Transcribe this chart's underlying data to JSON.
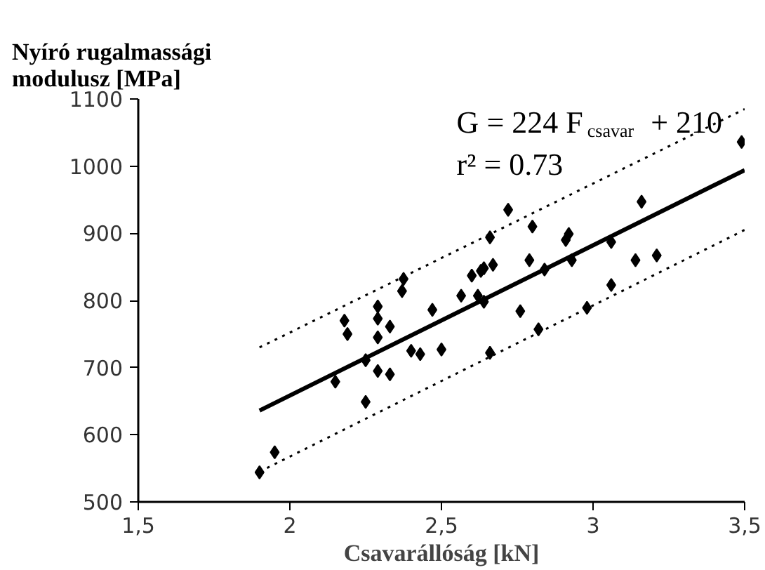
{
  "chart_data": {
    "type": "scatter",
    "ylabel": "Nyíró rugalmassági\nmodulusz [MPa]",
    "xlabel": "Csavarállóság [kN]",
    "xlim": [
      1.5,
      3.5
    ],
    "xticks": [
      {
        "value": 1.5,
        "label": "1,5"
      },
      2,
      {
        "value": 2.5,
        "label": "2,5"
      },
      3,
      {
        "value": 3.5,
        "label": "3,5"
      }
    ],
    "ylim": [
      500,
      1100
    ],
    "yticks": [
      500,
      600,
      700,
      800,
      900,
      1000,
      1100
    ],
    "grid": false,
    "marker": "diamond",
    "annotations": [
      "G = 224 F$_{csavar}$ + 210",
      "r² = 0.73"
    ],
    "series": [
      {
        "color": "#000000",
        "x": [
          1.9,
          1.95,
          2.15,
          2.25,
          2.18,
          2.19,
          2.29,
          2.29,
          2.29,
          2.33,
          2.25,
          2.29,
          2.33,
          2.375,
          2.37,
          2.4,
          2.43,
          2.47,
          2.5,
          2.6,
          2.63,
          2.565,
          2.62,
          2.64,
          2.66,
          2.66,
          2.72,
          2.8,
          2.64,
          2.67,
          2.79,
          2.84,
          2.76,
          2.82,
          2.92,
          2.91,
          2.93,
          2.98,
          3.06,
          3.06,
          3.14,
          3.21,
          3.16,
          3.49
        ],
        "values": [
          544,
          574,
          679,
          649,
          770,
          750,
          791,
          773,
          745,
          761,
          711,
          695,
          690,
          832,
          814,
          725,
          720,
          786,
          727,
          837,
          844,
          807,
          807,
          798,
          894,
          722,
          935,
          910,
          848,
          853,
          860,
          846,
          784,
          757,
          899,
          890,
          860,
          789,
          887,
          823,
          860,
          867,
          947,
          1036
        ]
      },
      {
        "type": "line",
        "color": "#000000",
        "line_style": "solid",
        "marker": "none",
        "x": [
          1.9,
          3.5
        ],
        "values": [
          636,
          994
        ]
      },
      {
        "type": "line",
        "color": "#000000",
        "line_style": "dotted",
        "marker": "none",
        "x": [
          1.9,
          3.5
        ],
        "values": [
          730,
          1085
        ]
      },
      {
        "type": "line",
        "color": "#000000",
        "line_style": "dotted",
        "marker": "none",
        "x": [
          1.9,
          3.5
        ],
        "values": [
          545,
          905
        ]
      }
    ]
  }
}
